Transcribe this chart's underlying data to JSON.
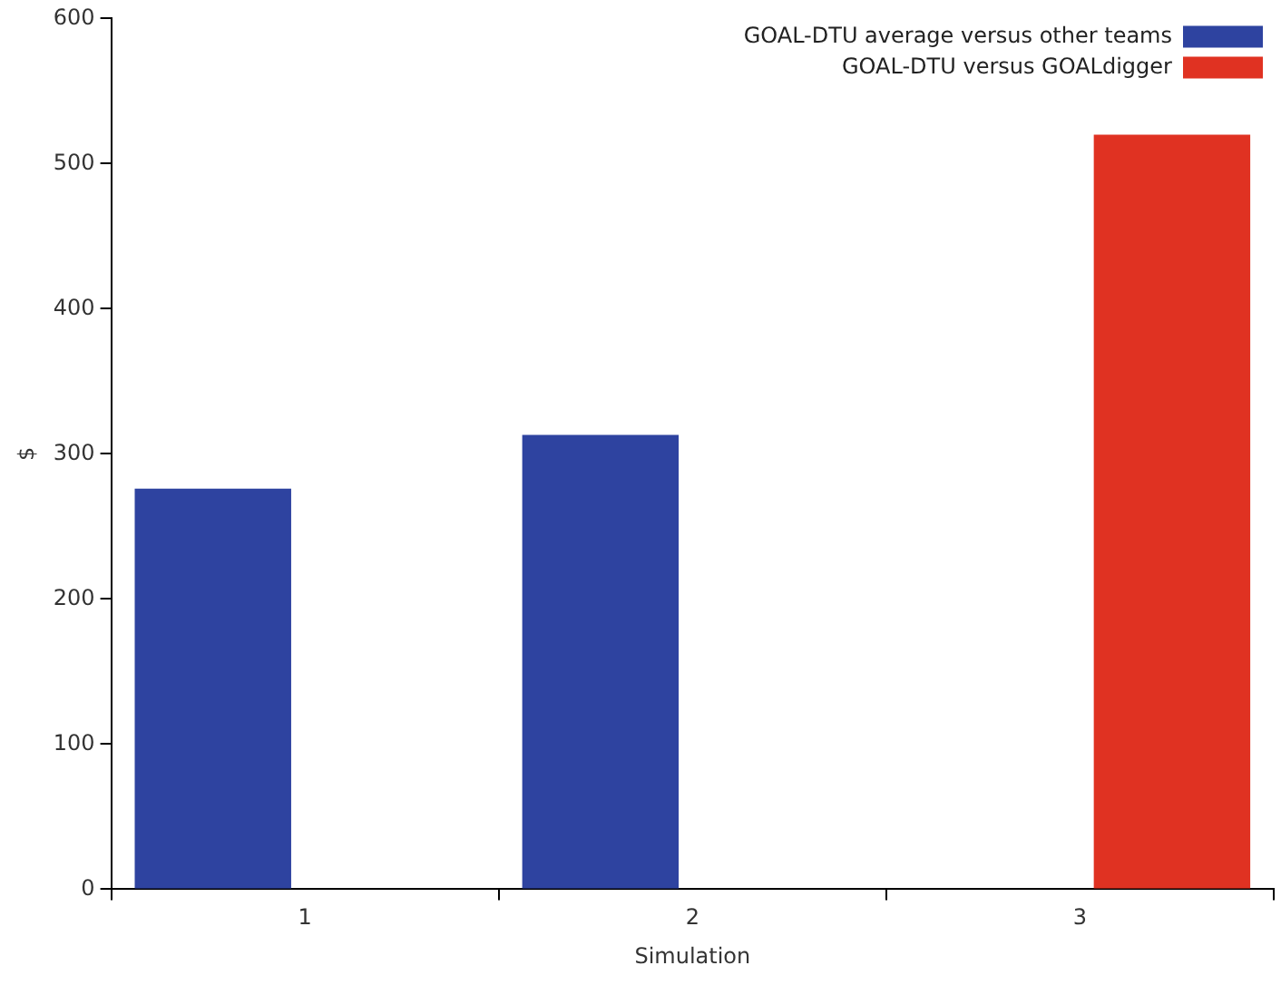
{
  "chart_data": {
    "type": "bar",
    "xlabel": "Simulation",
    "ylabel": "$",
    "categories": [
      "1",
      "2",
      "3"
    ],
    "series": [
      {
        "name": "GOAL-DTU average versus other teams",
        "color": "#2e43a0",
        "values": [
          276,
          313,
          null
        ]
      },
      {
        "name": "GOAL-DTU versus GOALdigger",
        "color": "#e03222",
        "values": [
          null,
          null,
          520
        ]
      }
    ],
    "ylim": [
      0,
      600
    ],
    "yticks": [
      0,
      100,
      200,
      300,
      400,
      500,
      600
    ],
    "grid": false,
    "legend": "top right"
  }
}
